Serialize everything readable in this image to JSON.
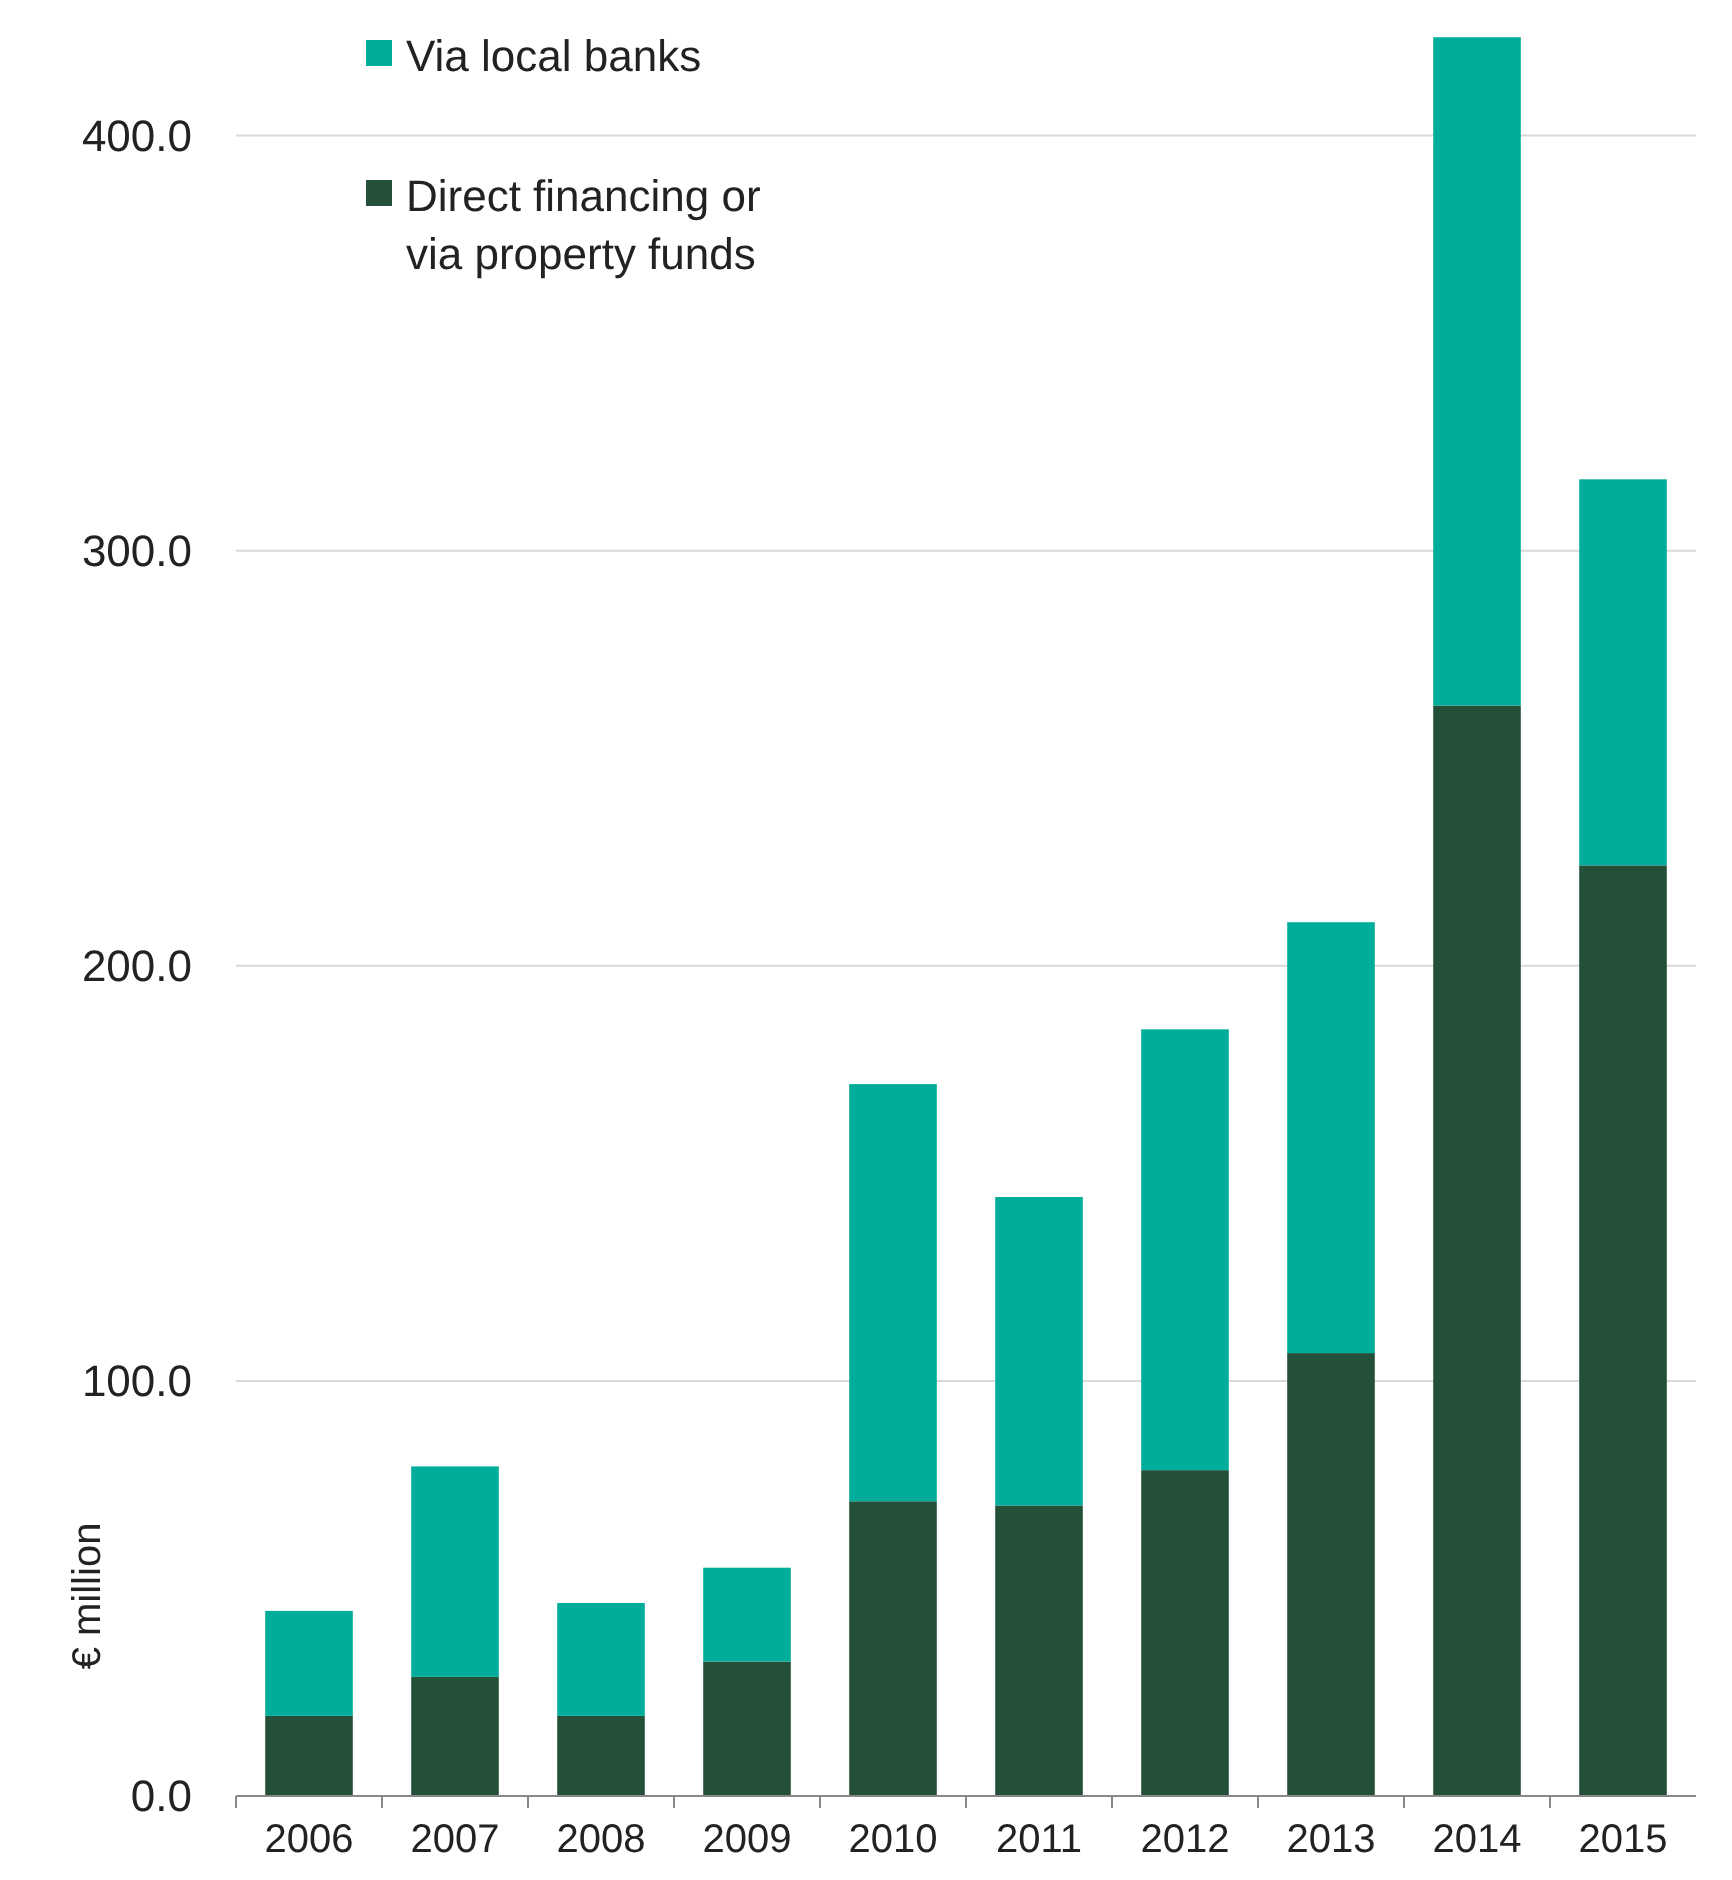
{
  "chart_data": {
    "type": "bar",
    "stacked": true,
    "ylabel": "€ million",
    "categories": [
      "2006",
      "2007",
      "2008",
      "2009",
      "2010",
      "2011",
      "2012",
      "2013",
      "2014",
      "2015"
    ],
    "series": [
      {
        "name": "Direct financing or via property funds",
        "color": "#24503a",
        "values": [
          19.3,
          28.7,
          19.3,
          32.4,
          71.0,
          70.0,
          78.5,
          106.7,
          262.7,
          224.2
        ]
      },
      {
        "name": "Via local banks",
        "color": "#00ad9a",
        "values": [
          25.3,
          50.7,
          27.2,
          22.6,
          100.5,
          74.3,
          106.2,
          103.8,
          161.0,
          93.0
        ]
      }
    ],
    "ylim": [
      0,
      424
    ],
    "yticks": [
      {
        "value": 0,
        "label": "0.0"
      },
      {
        "value": 100,
        "label": "100.0"
      },
      {
        "value": 200,
        "label": "200.0"
      },
      {
        "value": 300,
        "label": "300.0"
      },
      {
        "value": 400,
        "label": "400.0"
      }
    ],
    "grid": "y",
    "legend": "top left"
  }
}
